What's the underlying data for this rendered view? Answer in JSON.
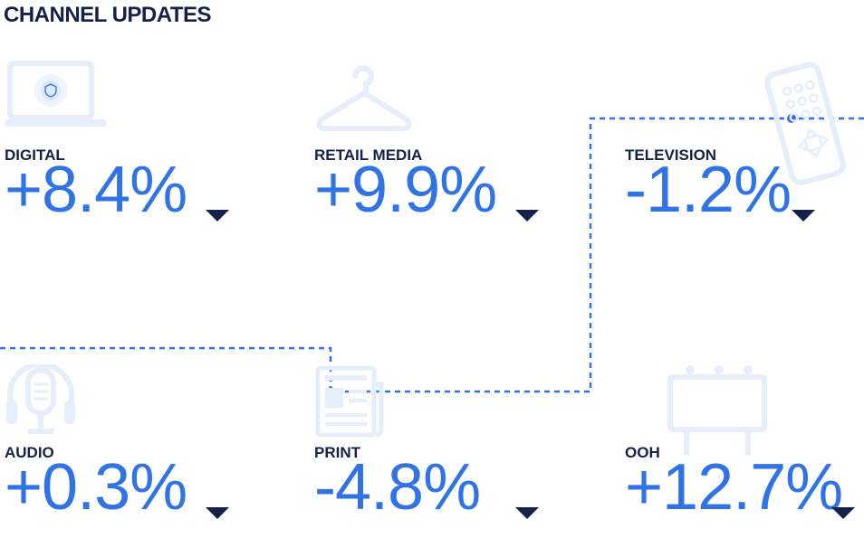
{
  "page_title": "CHANNEL UPDATES",
  "colors": {
    "heading": "#14224a",
    "value": "#2f73e6",
    "icon": "#e6eefb",
    "connector": "#2f73e6"
  },
  "channels": [
    {
      "name": "DIGITAL",
      "value": "+8.4%",
      "icon": "laptop-icon"
    },
    {
      "name": "RETAIL MEDIA",
      "value": "+9.9%",
      "icon": "hanger-icon"
    },
    {
      "name": "TELEVISION",
      "value": "-1.2%",
      "icon": "remote-control-icon"
    },
    {
      "name": "AUDIO",
      "value": "+0.3%",
      "icon": "microphone-icon"
    },
    {
      "name": "PRINT",
      "value": "-4.8%",
      "icon": "newspaper-icon"
    },
    {
      "name": "OOH",
      "value": "+12.7%",
      "icon": "billboard-icon"
    }
  ]
}
